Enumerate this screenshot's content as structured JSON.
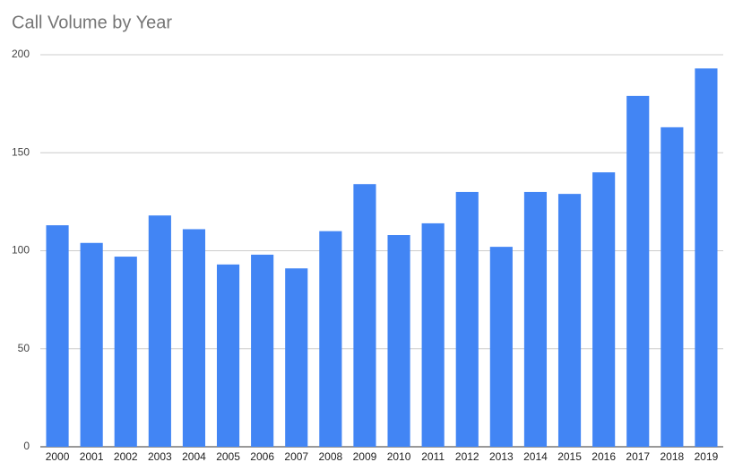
{
  "chart_data": {
    "type": "bar",
    "title": "Call Volume by Year",
    "categories": [
      "2000",
      "2001",
      "2002",
      "2003",
      "2004",
      "2005",
      "2006",
      "2007",
      "2008",
      "2009",
      "2010",
      "2011",
      "2012",
      "2013",
      "2014",
      "2015",
      "2016",
      "2017",
      "2018",
      "2019"
    ],
    "values": [
      113,
      104,
      97,
      118,
      111,
      93,
      98,
      91,
      110,
      134,
      108,
      114,
      130,
      102,
      130,
      129,
      140,
      179,
      163,
      193
    ],
    "color": "#4285f4",
    "ylim": [
      0,
      200
    ],
    "yticks": [
      0,
      50,
      100,
      150,
      200
    ],
    "grid": true
  }
}
